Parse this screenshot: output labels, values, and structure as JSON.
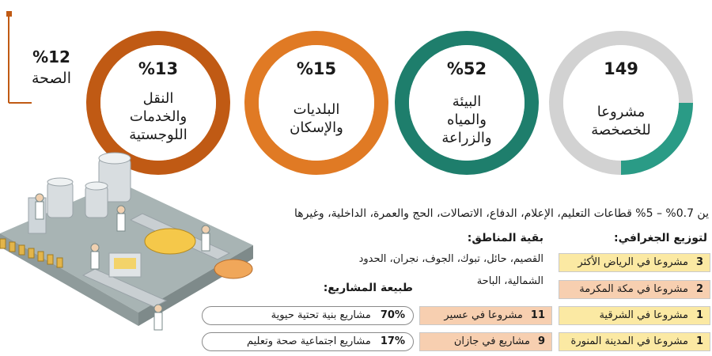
{
  "colors": {
    "orange_dark": "#c05a14",
    "orange": "#e07a24",
    "orange_light": "#ee9a3c",
    "teal": "#1e7e6c",
    "teal_light": "#2a9b86",
    "ring_grey": "#d2d2d2",
    "yellow_fill": "#fbe9a3",
    "peach_fill": "#f7cfb0"
  },
  "circles": [
    {
      "value": "149",
      "label": [
        "مشروعا",
        "للخصخصة"
      ]
    },
    {
      "value": "%52",
      "label": [
        "البيئة",
        "والمياه",
        "والزراعة"
      ]
    },
    {
      "value": "%15",
      "label": [
        "البلديات",
        "والإسكان"
      ]
    },
    {
      "value": "%13",
      "label": [
        "النقل",
        "والخدمات",
        "اللوجستية"
      ]
    }
  ],
  "health": {
    "value": "%12",
    "label": "الصحة"
  },
  "sectors_line": "ين 0.7% – 5% قطاعات التعليم، الإعلام، الدفاع، الاتصالات، الحج والعمرة، الداخلية، وغيرها",
  "geo": {
    "heading": "لتوزيع الجغرافي:",
    "rows": [
      {
        "num": "3",
        "text": "مشروعا في الرياض الأكثر"
      },
      {
        "num": "2",
        "text": "مشروعا في مكة المكرمة"
      },
      {
        "num": "1",
        "text": "مشروعا في الشرقية"
      },
      {
        "num": "1",
        "text": "مشروعا في المدينة المنورة"
      }
    ]
  },
  "regions": {
    "heading": "بقية المناطق:",
    "line1": "القصيم، حائل، تبوك، الجوف، نجران، الحدود",
    "line2": "الشمالية، الباحة"
  },
  "other_rows": [
    {
      "num": "11",
      "text": "مشروعا في عسير"
    },
    {
      "num": "9",
      "text": "مشاريع في جازان"
    }
  ],
  "nature": {
    "heading": "طبيعة المشاريع:",
    "rows": [
      {
        "num": "70%",
        "text": "مشاريع بنية تحتية حيوية"
      },
      {
        "num": "17%",
        "text": "مشاريع اجتماعية صحة وتعليم"
      }
    ]
  }
}
